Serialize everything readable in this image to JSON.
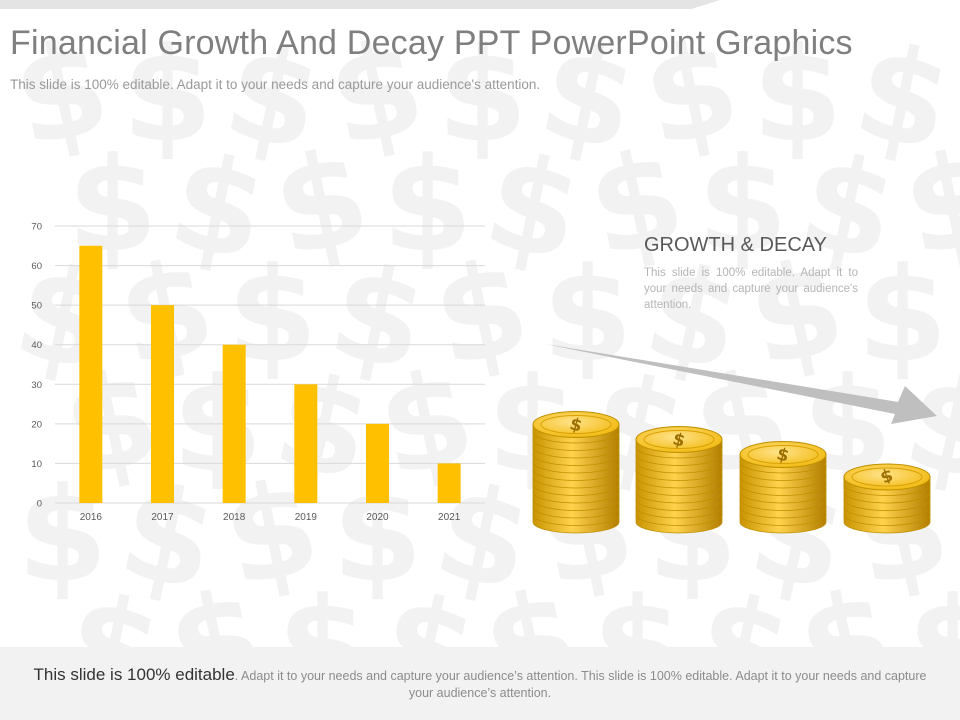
{
  "slide": {
    "title": "Financial Growth And Decay PPT PowerPoint Graphics",
    "subtitle": "This slide is 100% editable. Adapt it to your needs and capture your audience's attention."
  },
  "panel": {
    "heading": "GROWTH & DECAY",
    "body": "This slide is 100% editable. Adapt it to your needs and capture your audience's attention."
  },
  "footer": {
    "lead": "This slide is 100% editable",
    "rest": ". Adapt it to your needs and capture your audience’s attention. This slide is 100% editable. Adapt it to your needs and capture your audience’s attention."
  },
  "colors": {
    "bar": "#ffc000",
    "coin_light": "#ffd966",
    "coin_dark": "#bf8f00",
    "arrow": "#bfbfbf",
    "watermark": "#f2f2f2"
  },
  "icons": {
    "background": "dollar-sign-icon",
    "coin": "dollar-coin-icon",
    "trend": "arrow-right-icon"
  },
  "chart_data": {
    "type": "bar",
    "categories": [
      "2016",
      "2017",
      "2018",
      "2019",
      "2020",
      "2021"
    ],
    "values": [
      65,
      50,
      40,
      30,
      20,
      10
    ],
    "title": "",
    "xlabel": "",
    "ylabel": "",
    "ylim": [
      0,
      70
    ],
    "yticks": [
      "0",
      "10",
      "20",
      "30",
      "40",
      "50",
      "60",
      "70"
    ],
    "grid": true,
    "legend": "none"
  }
}
